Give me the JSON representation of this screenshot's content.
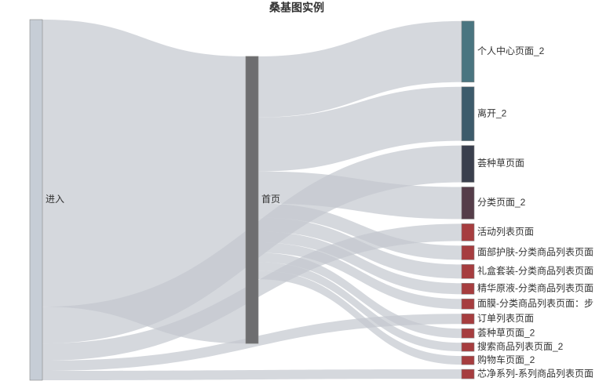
{
  "chart_data": {
    "type": "sankey",
    "title": "桑基图实例",
    "nodes": [
      {
        "name": "进入",
        "color": "#c6cdd6"
      },
      {
        "name": "首页",
        "color": "#6e6e70"
      },
      {
        "name": "个人中心页面_2",
        "color": "#4a7580"
      },
      {
        "name": "离开_2",
        "color": "#3d5b6b"
      },
      {
        "name": "荟种草页面",
        "color": "#3a3f4d"
      },
      {
        "name": "分类页面_2",
        "color": "#553d49"
      },
      {
        "name": "活动列表页面",
        "color": "#a63d3f"
      },
      {
        "name": "面部护肤-分类商品列表页面",
        "color": "#a63d3f"
      },
      {
        "name": "礼盒套装-分类商品列表页面",
        "color": "#a63d3f"
      },
      {
        "name": "精华原液-分类商品列表页面",
        "color": "#a63d3f"
      },
      {
        "name": "面膜-分类商品列表页面：步",
        "color": "#a63d3f"
      },
      {
        "name": "订单列表页面",
        "color": "#a63d3f"
      },
      {
        "name": "荟种草页面_2",
        "color": "#a63d3f"
      },
      {
        "name": "搜索商品列表页面_2",
        "color": "#a63d3f"
      },
      {
        "name": "购物车页面_2",
        "color": "#a63d3f"
      },
      {
        "name": "芯净系列-系列商品列表页面",
        "color": "#a63d3f"
      }
    ],
    "links": [
      {
        "source": 0,
        "target": 1,
        "value": 367
      },
      {
        "source": 0,
        "target": 4,
        "value": 47
      },
      {
        "source": 0,
        "target": 6,
        "value": 22
      },
      {
        "source": 0,
        "target": 11,
        "value": 13
      },
      {
        "source": 0,
        "target": 15,
        "value": 12
      },
      {
        "source": 1,
        "target": 2,
        "value": 78
      },
      {
        "source": 1,
        "target": 3,
        "value": 69
      },
      {
        "source": 1,
        "target": 5,
        "value": 41
      },
      {
        "source": 1,
        "target": 7,
        "value": 18
      },
      {
        "source": 1,
        "target": 8,
        "value": 18
      },
      {
        "source": 1,
        "target": 9,
        "value": 14
      },
      {
        "source": 1,
        "target": 10,
        "value": 13
      },
      {
        "source": 1,
        "target": 12,
        "value": 12
      },
      {
        "source": 1,
        "target": 13,
        "value": 11
      },
      {
        "source": 1,
        "target": 14,
        "value": 11
      }
    ],
    "link_color": "#c3c8ce"
  }
}
